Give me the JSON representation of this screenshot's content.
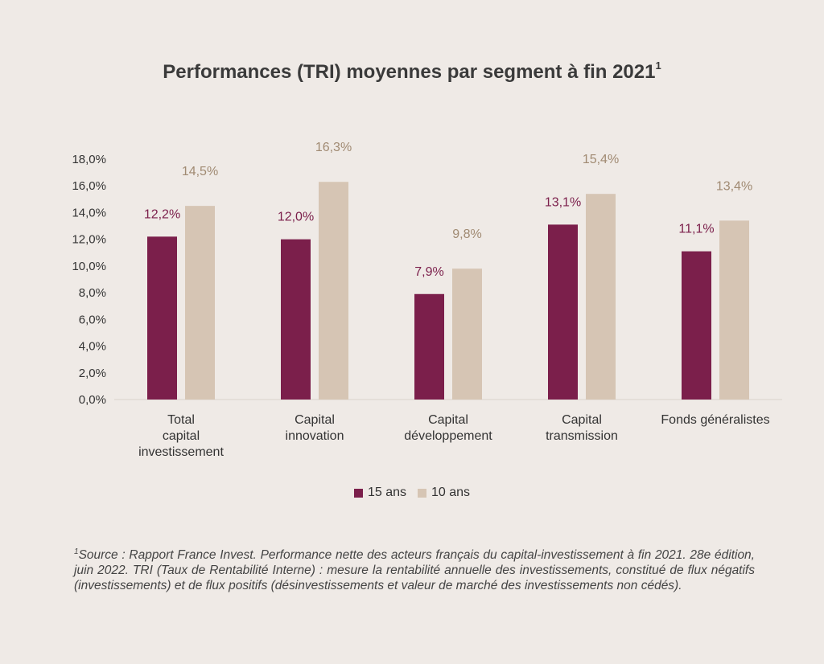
{
  "title": "Performances (TRI) moyennes par segment à fin 2021",
  "title_sup": "1",
  "chart_data": {
    "type": "bar",
    "categories": [
      [
        "Total",
        "capital",
        "investissement"
      ],
      [
        "Capital",
        "innovation"
      ],
      [
        "Capital",
        "développement"
      ],
      [
        "Capital",
        "transmission"
      ],
      [
        "Fonds généralistes"
      ]
    ],
    "series": [
      {
        "name": "15 ans",
        "values": [
          12.2,
          12.0,
          7.9,
          13.1,
          11.1
        ],
        "labels": [
          "12,2%",
          "12,0%",
          "7,9%",
          "13,1%",
          "11,1%"
        ],
        "color": "#7b1f4b",
        "label_color": "#7b1f4b"
      },
      {
        "name": "10 ans",
        "values": [
          14.5,
          16.3,
          9.8,
          15.4,
          13.4
        ],
        "labels": [
          "14,5%",
          "16,3%",
          "9,8%",
          "15,4%",
          "13,4%"
        ],
        "color": "#d6c5b4",
        "label_color": "#a08a72"
      }
    ],
    "y_ticks": [
      "0,0%",
      "2,0%",
      "4,0%",
      "6,0%",
      "8,0%",
      "10,0%",
      "12,0%",
      "14,0%",
      "16,0%",
      "18,0%"
    ],
    "ylim": [
      0,
      18
    ],
    "legend_position": "bottom",
    "grid": false
  },
  "legend": {
    "item1": "15 ans",
    "item2": "10 ans"
  },
  "footnote": {
    "sup": "1",
    "text": "Source : Rapport France Invest. Performance nette des acteurs français du capital-investissement à fin 2021. 28e édition, juin 2022. TRI (Taux de Rentabilité Interne) : mesure la rentabilité annuelle des investissements, constitué de flux négatifs (investissements) et de flux positifs (désinvestissements et valeur de marché des investissements non cédés)."
  }
}
